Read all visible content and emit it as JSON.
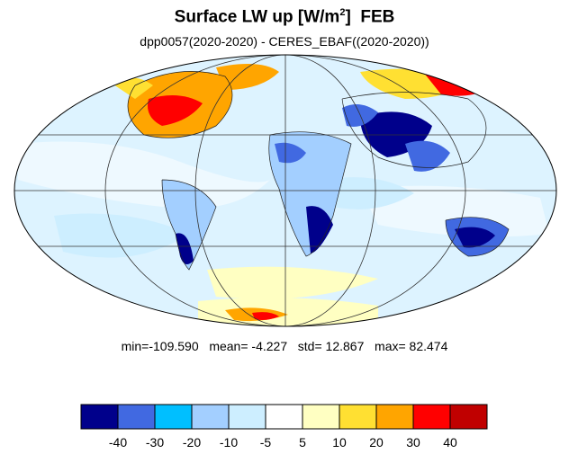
{
  "title": {
    "main": "Surface LW up [W/m",
    "sup": "2",
    "close": "]",
    "month": "FEB"
  },
  "subtitle": "dpp0057(2020-2020) - CERES_EBAF((2020-2020))",
  "stats": {
    "min_label": "min=",
    "min": "-109.590",
    "mean_label": "mean=",
    "mean": "-4.227",
    "std_label": "std=",
    "std": "12.867",
    "max_label": "max=",
    "max": "82.474"
  },
  "map": {
    "projection": "mollweide",
    "graticule": "30-degree lines"
  },
  "colorbar": {
    "colors": [
      "#00008b",
      "#4169e1",
      "#00bfff",
      "#a3cfff",
      "#cdeeff",
      "#ffffff",
      "#ffffc2",
      "#ffe032",
      "#ffa500",
      "#ff0000",
      "#c00000"
    ],
    "labels": [
      "-40",
      "-30",
      "-20",
      "-10",
      "-5",
      "5",
      "10",
      "20",
      "30",
      "40"
    ]
  }
}
